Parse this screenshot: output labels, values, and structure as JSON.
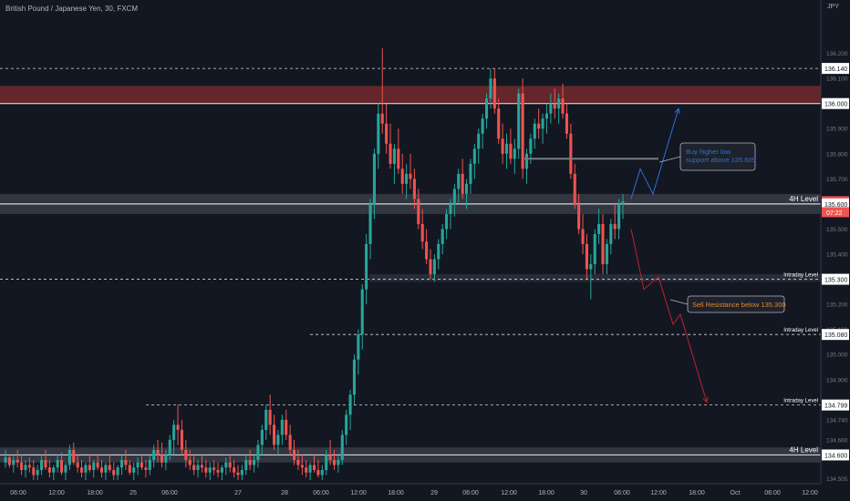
{
  "header": {
    "symbol_title": "British Pound / Japanese Yen, 30, FXCM",
    "currency": "JPY"
  },
  "chart_data": {
    "type": "candlestick",
    "symbol": "GBPJPY",
    "interval": "30",
    "y_axis": {
      "range": [
        134.5,
        136.34
      ],
      "tick_labels": [
        "136.200",
        "136.100",
        "136.000",
        "135.900",
        "135.800",
        "135.700",
        "135.600",
        "135.500",
        "135.400",
        "135.300",
        "135.200",
        "135.100",
        "135.000",
        "134.900",
        "134.800",
        "134.740",
        "134.660",
        "134.505"
      ]
    },
    "x_axis": {
      "tick_labels": [
        "06:00",
        "12:00",
        "18:00",
        "25",
        "06:00",
        "27",
        "28",
        "06:00",
        "12:00",
        "18:00",
        "29",
        "06:00",
        "12:00",
        "18:00",
        "30",
        "06:00",
        "12:00",
        "18:00",
        "Oct",
        "06:00",
        "12:00"
      ]
    },
    "price_labels": [
      {
        "value": 136.14,
        "text": "136.140",
        "style": "white"
      },
      {
        "value": 136.0,
        "text": "136.000",
        "style": "white"
      },
      {
        "value": 135.609,
        "text": "135.609",
        "style": "red"
      },
      {
        "value": 135.6,
        "text": "135.600",
        "style": "white"
      },
      {
        "value": 135.3,
        "text": "135.300",
        "style": "white"
      },
      {
        "value": 135.08,
        "text": "135.080",
        "style": "white"
      },
      {
        "value": 134.799,
        "text": "134.799",
        "style": "white"
      },
      {
        "value": 134.6,
        "text": "134.600",
        "style": "white"
      }
    ],
    "countdown": "07:22",
    "levels": [
      {
        "label": "",
        "value": 136.14,
        "style": "dashed"
      },
      {
        "label": "",
        "value": 136.0,
        "style": "solid"
      },
      {
        "label": "4H Level",
        "value": 135.6,
        "style": "solid"
      },
      {
        "label": "Intraday Level",
        "value": 135.3,
        "style": "dashed"
      },
      {
        "label": "Intraday Level",
        "value": 135.08,
        "style": "dashed"
      },
      {
        "label": "Intraday Level",
        "value": 134.799,
        "style": "dashed"
      },
      {
        "label": "4H Level",
        "value": 134.6,
        "style": "solid"
      }
    ],
    "zones": [
      {
        "name": "resistance-zone",
        "low": 136.0,
        "high": 136.07,
        "color": "#7a2a2e"
      },
      {
        "name": "4h-zone-mid",
        "low": 135.56,
        "high": 135.64,
        "color": "#3a3e4a"
      },
      {
        "name": "intraday-zone",
        "low": 135.29,
        "high": 135.32,
        "color": "#2e3240"
      },
      {
        "name": "4h-zone-low",
        "low": 134.57,
        "high": 134.63,
        "color": "#3a3e4a"
      }
    ],
    "annotations": [
      {
        "text": "Buy higher low\nsupport above 135.609",
        "color": "#2f6fcf"
      },
      {
        "text": "Sell Resistance below 135.300",
        "color": "#e0882c"
      }
    ],
    "projections": [
      {
        "name": "bullish-path",
        "color": "#2f6fcf",
        "points": [
          [
            0,
            135.62
          ],
          [
            1,
            135.74
          ],
          [
            2,
            135.64
          ],
          [
            3,
            135.98
          ]
        ]
      },
      {
        "name": "bearish-path",
        "color": "#c0202c",
        "points": [
          [
            0,
            135.5
          ],
          [
            1,
            135.26
          ],
          [
            2,
            135.31
          ],
          [
            3,
            135.12
          ],
          [
            4,
            135.16
          ],
          [
            5,
            134.81
          ]
        ]
      }
    ],
    "candles": [
      [
        134.57,
        134.62,
        134.55,
        134.59
      ],
      [
        134.59,
        134.6,
        134.55,
        134.56
      ],
      [
        134.56,
        134.6,
        134.53,
        134.58
      ],
      [
        134.58,
        134.62,
        134.55,
        134.57
      ],
      [
        134.57,
        134.6,
        134.52,
        134.54
      ],
      [
        134.54,
        134.58,
        134.51,
        134.56
      ],
      [
        134.56,
        134.59,
        134.53,
        134.55
      ],
      [
        134.55,
        134.58,
        134.5,
        134.52
      ],
      [
        134.52,
        134.56,
        134.5,
        134.54
      ],
      [
        134.54,
        134.6,
        134.52,
        134.58
      ],
      [
        134.58,
        134.62,
        134.54,
        134.55
      ],
      [
        134.55,
        134.58,
        134.51,
        134.53
      ],
      [
        134.53,
        134.56,
        134.5,
        134.55
      ],
      [
        134.55,
        134.6,
        134.53,
        134.58
      ],
      [
        134.58,
        134.61,
        134.52,
        134.53
      ],
      [
        134.53,
        134.57,
        134.5,
        134.56
      ],
      [
        134.56,
        134.64,
        134.54,
        134.62
      ],
      [
        134.62,
        134.65,
        134.56,
        134.57
      ],
      [
        134.57,
        134.6,
        134.53,
        134.55
      ],
      [
        134.55,
        134.58,
        134.51,
        134.53
      ],
      [
        134.53,
        134.57,
        134.5,
        134.56
      ],
      [
        134.56,
        134.6,
        134.53,
        134.54
      ],
      [
        134.54,
        134.58,
        134.51,
        134.57
      ],
      [
        134.57,
        134.6,
        134.54,
        134.55
      ],
      [
        134.55,
        134.58,
        134.51,
        134.53
      ],
      [
        134.53,
        134.57,
        134.5,
        134.56
      ],
      [
        134.56,
        134.6,
        134.53,
        134.54
      ],
      [
        134.54,
        134.57,
        134.5,
        134.52
      ],
      [
        134.52,
        134.56,
        134.5,
        134.55
      ],
      [
        134.55,
        134.6,
        134.52,
        134.58
      ],
      [
        134.58,
        134.62,
        134.54,
        134.56
      ],
      [
        134.56,
        134.58,
        134.52,
        134.53
      ],
      [
        134.53,
        134.57,
        134.5,
        134.55
      ],
      [
        134.55,
        134.59,
        134.52,
        134.57
      ],
      [
        134.57,
        134.6,
        134.54,
        134.55
      ],
      [
        134.55,
        134.58,
        134.51,
        134.54
      ],
      [
        134.54,
        134.6,
        134.52,
        134.58
      ],
      [
        134.58,
        134.64,
        134.55,
        134.62
      ],
      [
        134.62,
        134.66,
        134.57,
        134.6
      ],
      [
        134.6,
        134.65,
        134.55,
        134.57
      ],
      [
        134.57,
        134.62,
        134.54,
        134.6
      ],
      [
        134.6,
        134.68,
        134.58,
        134.66
      ],
      [
        134.66,
        134.74,
        134.6,
        134.72
      ],
      [
        134.72,
        134.8,
        134.64,
        134.7
      ],
      [
        134.7,
        134.74,
        134.6,
        134.62
      ],
      [
        134.62,
        134.66,
        134.55,
        134.58
      ],
      [
        134.58,
        134.62,
        134.54,
        134.56
      ],
      [
        134.56,
        134.6,
        134.52,
        134.54
      ],
      [
        134.54,
        134.58,
        134.51,
        134.56
      ],
      [
        134.56,
        134.6,
        134.53,
        134.55
      ],
      [
        134.55,
        134.58,
        134.51,
        134.53
      ],
      [
        134.53,
        134.57,
        134.5,
        134.55
      ],
      [
        134.55,
        134.58,
        134.52,
        134.54
      ],
      [
        134.54,
        134.57,
        134.51,
        134.53
      ],
      [
        134.53,
        134.56,
        134.5,
        134.55
      ],
      [
        134.55,
        134.59,
        134.52,
        134.57
      ],
      [
        134.57,
        134.6,
        134.53,
        134.55
      ],
      [
        134.55,
        134.58,
        134.51,
        134.53
      ],
      [
        134.53,
        134.56,
        134.5,
        134.52
      ],
      [
        134.52,
        134.56,
        134.5,
        134.54
      ],
      [
        134.54,
        134.6,
        134.52,
        134.58
      ],
      [
        134.58,
        134.62,
        134.54,
        134.56
      ],
      [
        134.56,
        134.6,
        134.53,
        134.58
      ],
      [
        134.58,
        134.66,
        134.55,
        134.64
      ],
      [
        134.64,
        134.72,
        134.6,
        134.7
      ],
      [
        134.7,
        134.8,
        134.66,
        134.78
      ],
      [
        134.78,
        134.84,
        134.68,
        134.72
      ],
      [
        134.72,
        134.76,
        134.62,
        134.64
      ],
      [
        134.64,
        134.7,
        134.6,
        134.68
      ],
      [
        134.68,
        134.76,
        134.64,
        134.74
      ],
      [
        134.74,
        134.78,
        134.66,
        134.68
      ],
      [
        134.68,
        134.72,
        134.6,
        134.62
      ],
      [
        134.62,
        134.66,
        134.56,
        134.58
      ],
      [
        134.58,
        134.62,
        134.54,
        134.56
      ],
      [
        134.56,
        134.6,
        134.52,
        134.55
      ],
      [
        134.55,
        134.58,
        134.51,
        134.53
      ],
      [
        134.53,
        134.57,
        134.5,
        134.56
      ],
      [
        134.56,
        134.6,
        134.53,
        134.54
      ],
      [
        134.54,
        134.58,
        134.51,
        134.52
      ],
      [
        134.52,
        134.56,
        134.5,
        134.54
      ],
      [
        134.54,
        134.62,
        134.52,
        134.6
      ],
      [
        134.6,
        134.66,
        134.56,
        134.58
      ],
      [
        134.58,
        134.62,
        134.54,
        134.56
      ],
      [
        134.56,
        134.6,
        134.53,
        134.58
      ],
      [
        134.58,
        134.7,
        134.56,
        134.68
      ],
      [
        134.68,
        134.78,
        134.64,
        134.76
      ],
      [
        134.76,
        134.86,
        134.7,
        134.84
      ],
      [
        134.84,
        135.0,
        134.8,
        134.98
      ],
      [
        134.98,
        135.1,
        134.92,
        135.08
      ],
      [
        135.08,
        135.28,
        135.02,
        135.26
      ],
      [
        135.26,
        135.48,
        135.2,
        135.44
      ],
      [
        135.44,
        135.62,
        135.38,
        135.6
      ],
      [
        135.6,
        135.82,
        135.54,
        135.8
      ],
      [
        135.8,
        136.0,
        135.74,
        135.96
      ],
      [
        135.96,
        136.22,
        135.88,
        135.92
      ],
      [
        135.92,
        136.0,
        135.8,
        135.84
      ],
      [
        135.84,
        135.92,
        135.74,
        135.76
      ],
      [
        135.76,
        135.84,
        135.68,
        135.82
      ],
      [
        135.82,
        135.9,
        135.72,
        135.74
      ],
      [
        135.74,
        135.8,
        135.64,
        135.68
      ],
      [
        135.68,
        135.76,
        135.62,
        135.72
      ],
      [
        135.72,
        135.8,
        135.66,
        135.7
      ],
      [
        135.7,
        135.74,
        135.58,
        135.62
      ],
      [
        135.62,
        135.66,
        135.5,
        135.52
      ],
      [
        135.52,
        135.58,
        135.42,
        135.45
      ],
      [
        135.45,
        135.5,
        135.36,
        135.38
      ],
      [
        135.38,
        135.42,
        135.3,
        135.32
      ],
      [
        135.32,
        135.4,
        135.29,
        135.38
      ],
      [
        135.38,
        135.46,
        135.34,
        135.44
      ],
      [
        135.44,
        135.52,
        135.4,
        135.5
      ],
      [
        135.5,
        135.58,
        135.46,
        135.56
      ],
      [
        135.56,
        135.62,
        135.5,
        135.6
      ],
      [
        135.6,
        135.68,
        135.55,
        135.66
      ],
      [
        135.66,
        135.74,
        135.6,
        135.72
      ],
      [
        135.72,
        135.78,
        135.62,
        135.64
      ],
      [
        135.64,
        135.7,
        135.58,
        135.68
      ],
      [
        135.68,
        135.78,
        135.64,
        135.76
      ],
      [
        135.76,
        135.84,
        135.7,
        135.82
      ],
      [
        135.82,
        135.9,
        135.76,
        135.88
      ],
      [
        135.88,
        135.96,
        135.82,
        135.94
      ],
      [
        135.94,
        136.04,
        135.9,
        136.02
      ],
      [
        136.02,
        136.14,
        135.98,
        136.1
      ],
      [
        136.1,
        136.14,
        135.96,
        135.98
      ],
      [
        135.98,
        136.02,
        135.84,
        135.86
      ],
      [
        135.86,
        135.92,
        135.76,
        135.8
      ],
      [
        135.8,
        135.88,
        135.74,
        135.84
      ],
      [
        135.84,
        135.9,
        135.76,
        135.78
      ],
      [
        135.78,
        135.86,
        135.72,
        135.82
      ],
      [
        135.82,
        136.06,
        135.78,
        136.04
      ],
      [
        136.04,
        136.1,
        135.7,
        135.74
      ],
      [
        135.74,
        135.82,
        135.68,
        135.8
      ],
      [
        135.8,
        135.88,
        135.76,
        135.86
      ],
      [
        135.86,
        135.94,
        135.82,
        135.92
      ],
      [
        135.92,
        135.98,
        135.86,
        135.9
      ],
      [
        135.9,
        135.96,
        135.84,
        135.94
      ],
      [
        135.94,
        136.0,
        135.88,
        135.96
      ],
      [
        135.96,
        136.04,
        135.92,
        136.0
      ],
      [
        136.0,
        136.06,
        135.94,
        135.98
      ],
      [
        135.98,
        136.04,
        135.92,
        136.02
      ],
      [
        136.02,
        136.08,
        135.94,
        135.96
      ],
      [
        135.96,
        136.0,
        135.86,
        135.88
      ],
      [
        135.88,
        135.92,
        135.7,
        135.72
      ],
      [
        135.72,
        135.76,
        135.58,
        135.6
      ],
      [
        135.6,
        135.64,
        135.48,
        135.5
      ],
      [
        135.5,
        135.56,
        135.4,
        135.44
      ],
      [
        135.44,
        135.48,
        135.3,
        135.34
      ],
      [
        135.34,
        135.4,
        135.22,
        135.36
      ],
      [
        135.36,
        135.5,
        135.32,
        135.48
      ],
      [
        135.48,
        135.58,
        135.44,
        135.52
      ],
      [
        135.52,
        135.56,
        135.32,
        135.36
      ],
      [
        135.36,
        135.46,
        135.32,
        135.44
      ],
      [
        135.44,
        135.54,
        135.4,
        135.52
      ],
      [
        135.52,
        135.6,
        135.46,
        135.5
      ],
      [
        135.5,
        135.62,
        135.46,
        135.6
      ],
      [
        135.6,
        135.64,
        135.54,
        135.61
      ]
    ]
  }
}
